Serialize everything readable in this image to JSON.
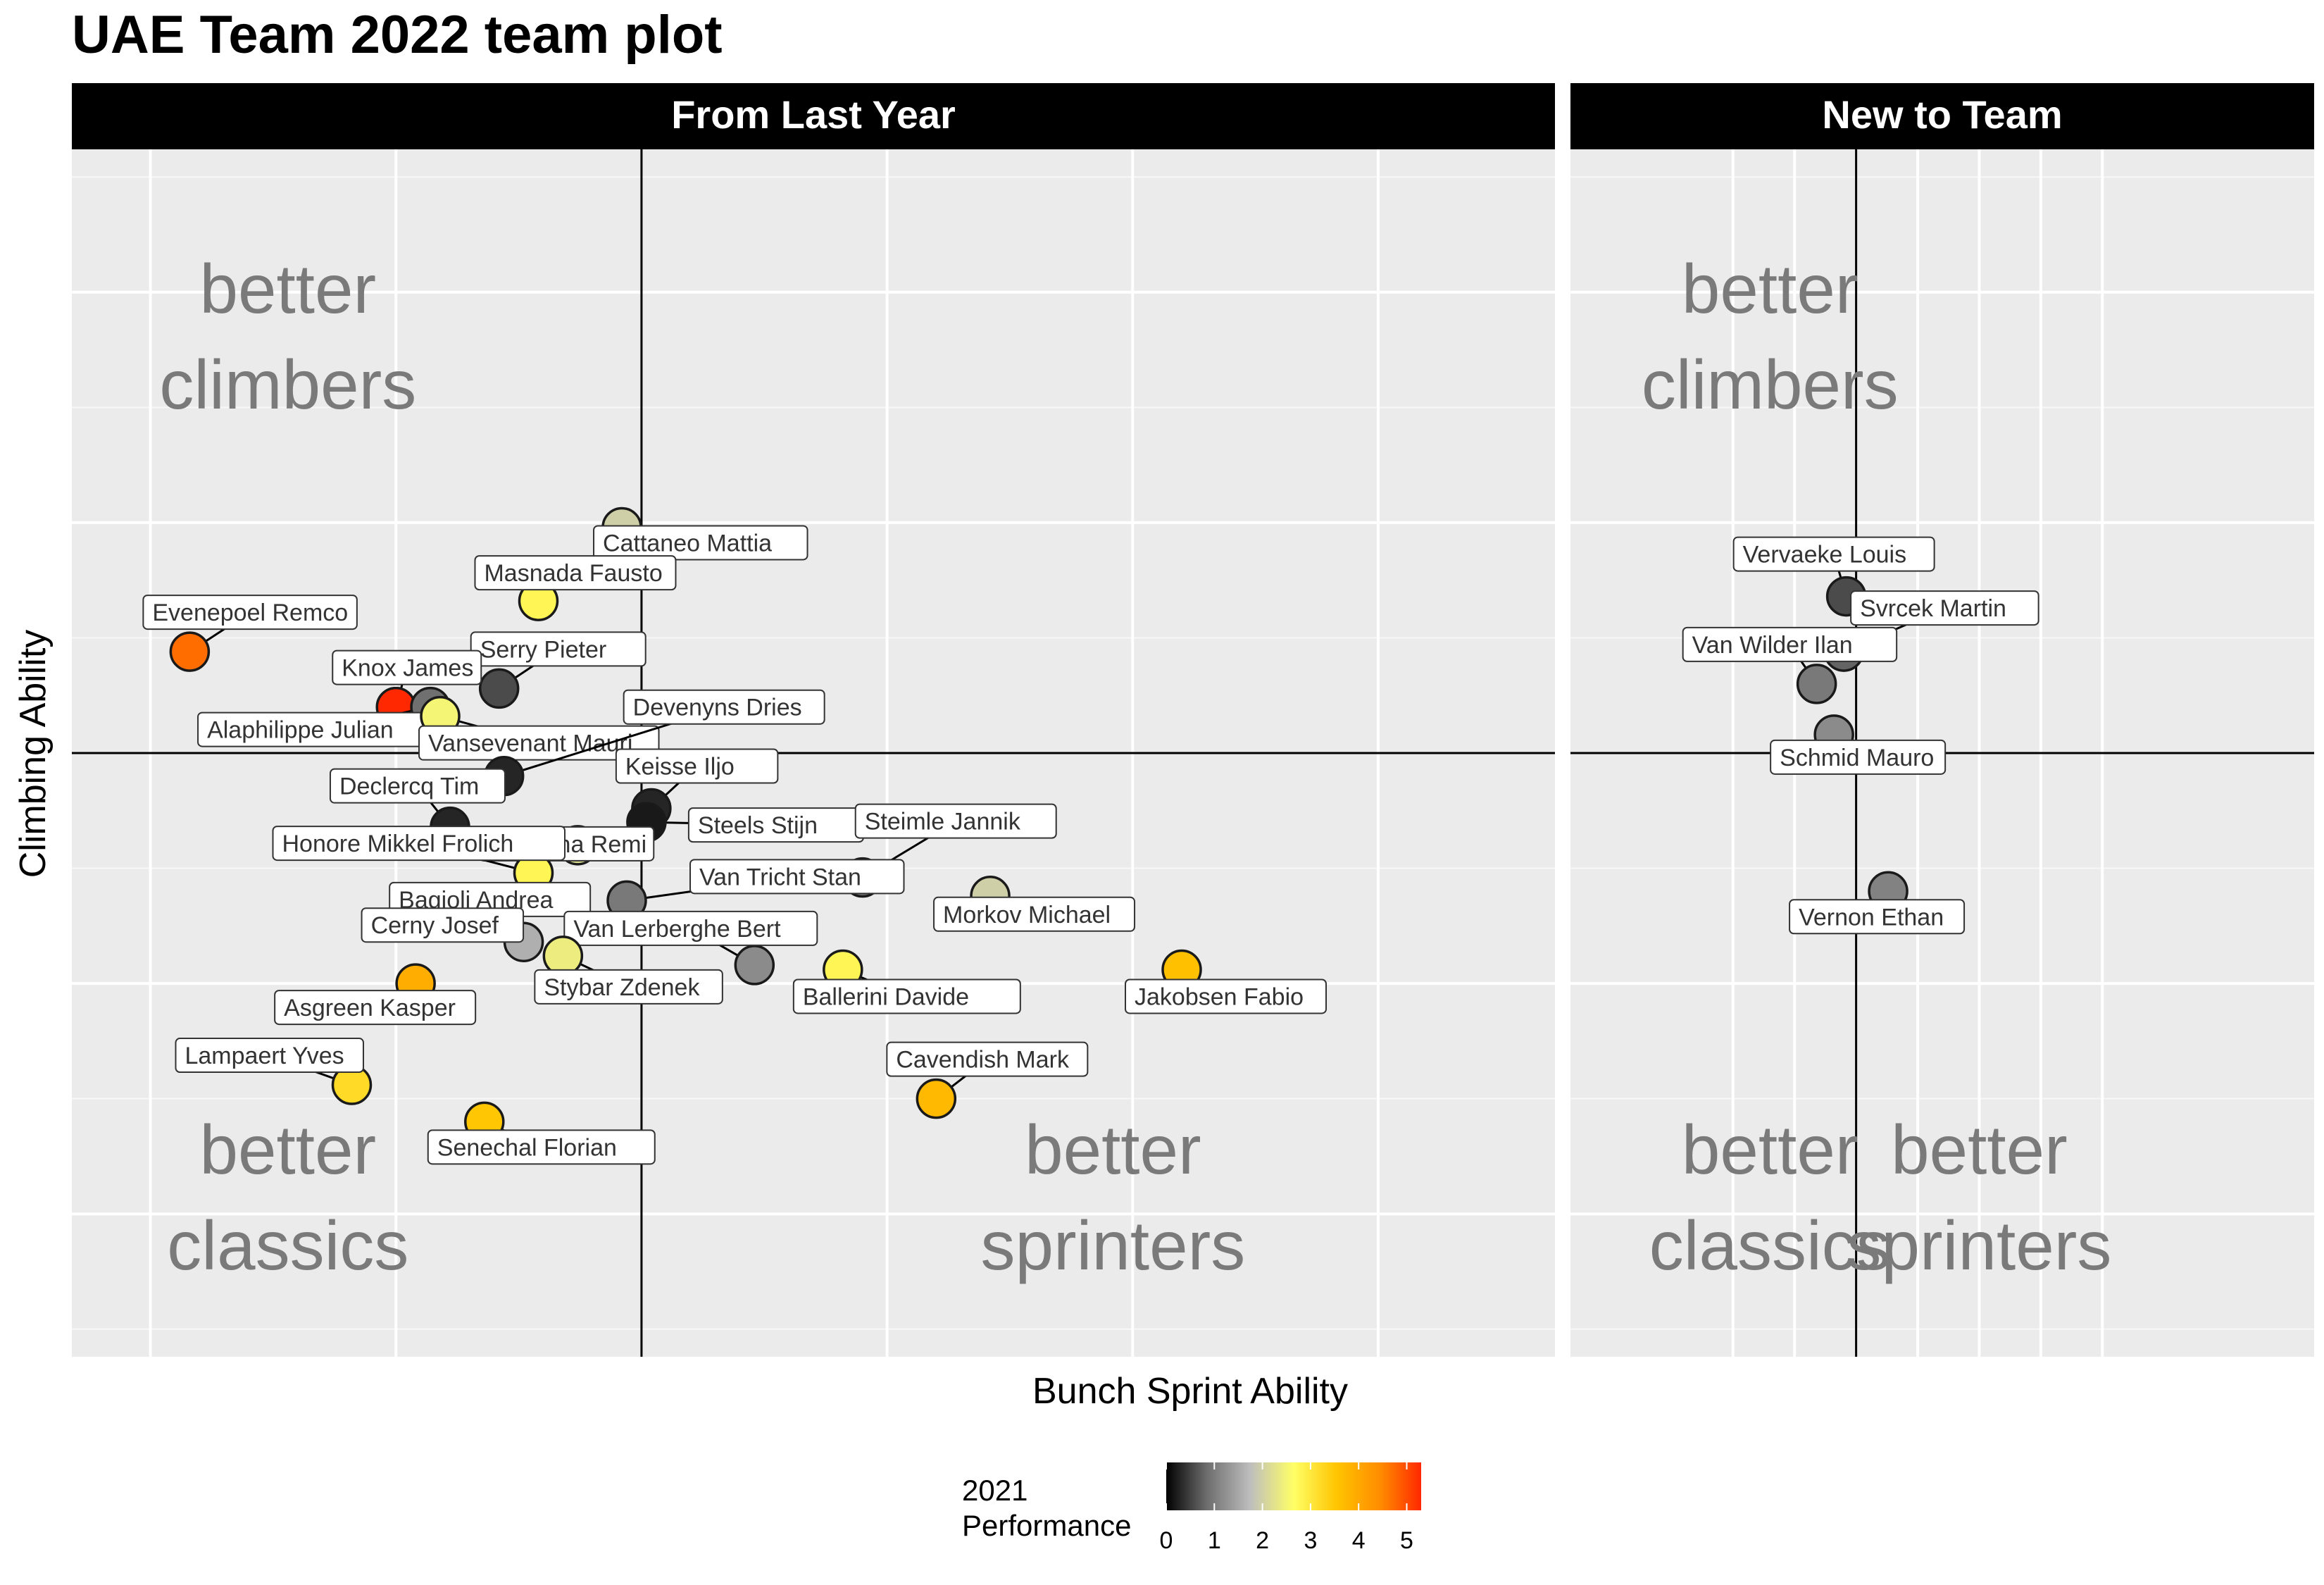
{
  "chart_data": {
    "type": "scatter",
    "title": "UAE Team 2022 team plot",
    "xlabel": "Bunch Sprint Ability",
    "ylabel": "Climbing Ability",
    "grid": true,
    "legend_position": "bottom",
    "legend": {
      "title_line1": "2021",
      "title_line2": "Performance",
      "range": [
        0,
        5.3
      ],
      "ticks": [
        "0",
        "1",
        "2",
        "3",
        "4",
        "5"
      ],
      "colors": [
        "#000000",
        "#6e6e6e",
        "#bebebe",
        "#ffff66",
        "#ffc400",
        "#ff8c00",
        "#ff2800"
      ]
    },
    "axes": {
      "x_range": [
        -1.16,
        1.86
      ],
      "y_range": [
        -1.31,
        1.31
      ]
    },
    "facets": [
      {
        "name": "From Last Year",
        "corner_labels": {
          "top_left": [
            "better",
            "climbers"
          ],
          "bottom_left": [
            "better",
            "classics"
          ],
          "bottom_right": [
            "better",
            "sprinters"
          ]
        },
        "points": [
          {
            "name": "Cattaneo Mattia",
            "x": -0.04,
            "y": 0.49,
            "perf": 2.0
          },
          {
            "name": "Masnada Fausto",
            "x": -0.21,
            "y": 0.33,
            "perf": 2.8
          },
          {
            "name": "Evenepoel Remco",
            "x": -0.92,
            "y": 0.22,
            "perf": 4.7
          },
          {
            "name": "Serry Pieter",
            "x": -0.29,
            "y": 0.14,
            "perf": 0.6
          },
          {
            "name": "Knox James",
            "x": -0.5,
            "y": 0.1,
            "perf": 5.3
          },
          {
            "name": "Alaphilippe Julian",
            "x": -0.43,
            "y": 0.1,
            "perf": 0.9
          },
          {
            "name": "Vansevenant Mauri",
            "x": -0.41,
            "y": 0.08,
            "perf": 2.5
          },
          {
            "name": "Devenyns Dries",
            "x": -0.28,
            "y": -0.05,
            "perf": 0.3
          },
          {
            "name": "Keisse Iljo",
            "x": 0.02,
            "y": -0.12,
            "perf": 0.3
          },
          {
            "name": "Steels Stijn",
            "x": 0.01,
            "y": -0.15,
            "perf": 0.2
          },
          {
            "name": "Declercq Tim",
            "x": -0.39,
            "y": -0.16,
            "perf": 0.3
          },
          {
            "name": "Cavagna Remi",
            "x": -0.13,
            "y": -0.2,
            "perf": 2.2
          },
          {
            "name": "Honore Mikkel Frolich",
            "x": -0.22,
            "y": -0.26,
            "perf": 2.8
          },
          {
            "name": "Bagioli Andrea",
            "x": -0.47,
            "y": -0.33,
            "perf": 3.3
          },
          {
            "name": "Steimle Jannik",
            "x": 0.45,
            "y": -0.27,
            "perf": 1.0
          },
          {
            "name": "Van Tricht Stan",
            "x": -0.03,
            "y": -0.32,
            "perf": 1.0
          },
          {
            "name": "Morkov Michael",
            "x": 0.71,
            "y": -0.31,
            "perf": 2.0
          },
          {
            "name": "Cerny Josef",
            "x": -0.24,
            "y": -0.41,
            "perf": 1.6
          },
          {
            "name": "Van Lerberghe Bert",
            "x": 0.23,
            "y": -0.46,
            "perf": 1.2
          },
          {
            "name": "Stybar Zdenek",
            "x": -0.16,
            "y": -0.44,
            "perf": 2.4
          },
          {
            "name": "Asgreen Kasper",
            "x": -0.46,
            "y": -0.5,
            "perf": 3.9
          },
          {
            "name": "Ballerini Davide",
            "x": 0.41,
            "y": -0.47,
            "perf": 2.8
          },
          {
            "name": "Jakobsen Fabio",
            "x": 1.1,
            "y": -0.47,
            "perf": 3.6
          },
          {
            "name": "Lampaert Yves",
            "x": -0.59,
            "y": -0.72,
            "perf": 3.2
          },
          {
            "name": "Cavendish Mark",
            "x": 0.6,
            "y": -0.75,
            "perf": 3.7
          },
          {
            "name": "Senechal Florian",
            "x": -0.32,
            "y": -0.8,
            "perf": 3.5
          }
        ]
      },
      {
        "name": "New to Team",
        "corner_labels": {
          "top_left": [
            "better",
            "climbers"
          ],
          "bottom_left": [
            "better",
            "classics"
          ],
          "bottom_right": [
            "better",
            "sprinters"
          ]
        },
        "points": [
          {
            "name": "Vervaeke Louis",
            "x": -0.04,
            "y": 0.34,
            "perf": 0.6
          },
          {
            "name": "Svrcek Martin",
            "x": -0.05,
            "y": 0.22,
            "perf": 0.8
          },
          {
            "name": "Van Wilder Ilan",
            "x": -0.16,
            "y": 0.15,
            "perf": 1.0
          },
          {
            "name": "Schmid Mauro",
            "x": -0.09,
            "y": 0.04,
            "perf": 1.2
          },
          {
            "name": "Vernon Ethan",
            "x": 0.13,
            "y": -0.3,
            "perf": 1.1
          }
        ]
      }
    ]
  }
}
